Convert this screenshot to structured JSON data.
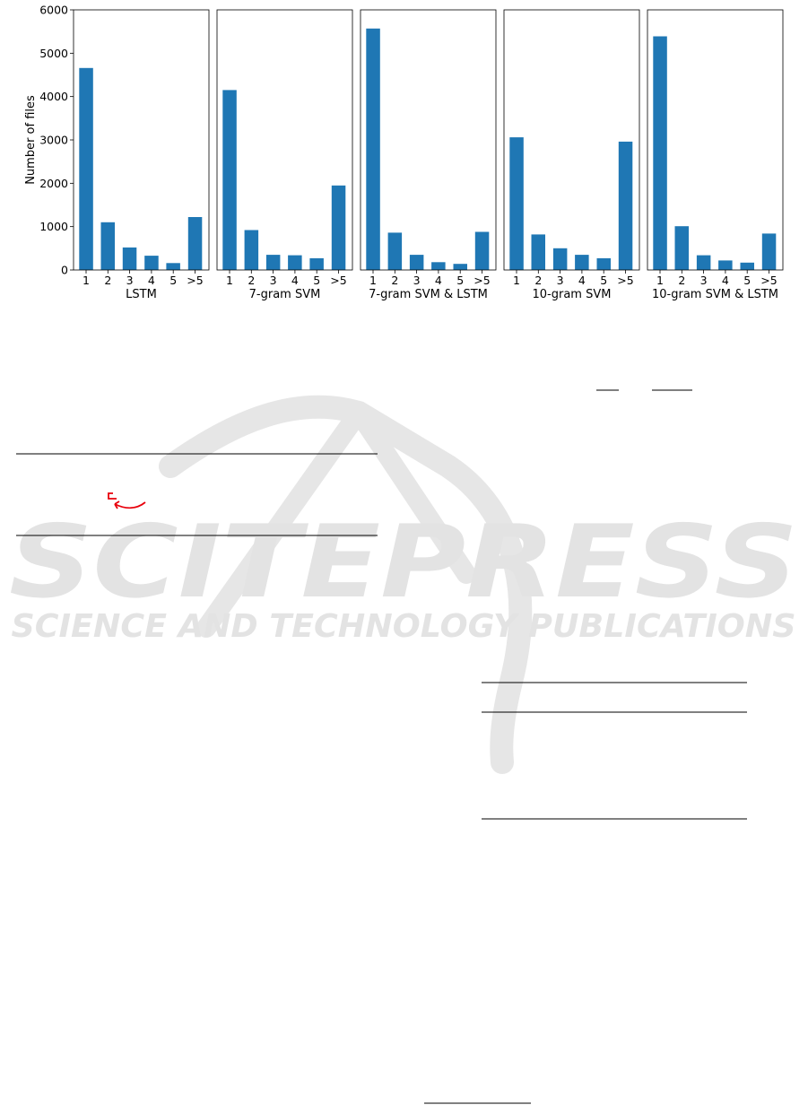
{
  "watermark": {
    "title": "SCITEPRESS",
    "subtitle": "SCIENCE AND TECHNOLOGY PUBLICATIONS",
    "color": "#e3e3e3"
  },
  "chart_data": {
    "type": "bar",
    "ylabel": "Number of files",
    "ylim": [
      0,
      6000
    ],
    "yticks": [
      0,
      1000,
      2000,
      3000,
      4000,
      5000,
      6000
    ],
    "categories": [
      "1",
      "2",
      "3",
      "4",
      "5",
      ">5"
    ],
    "bar_color": "#1f77b4",
    "grid": false,
    "panels": [
      {
        "xlabel": "LSTM",
        "values": [
          4660,
          1100,
          520,
          330,
          160,
          1220
        ]
      },
      {
        "xlabel": "7-gram SVM",
        "values": [
          4150,
          920,
          350,
          340,
          270,
          1950
        ]
      },
      {
        "xlabel": "7-gram SVM & LSTM",
        "values": [
          5570,
          860,
          350,
          180,
          140,
          880
        ]
      },
      {
        "xlabel": "10-gram SVM",
        "values": [
          3060,
          820,
          500,
          350,
          270,
          2960
        ]
      },
      {
        "xlabel": "10-gram SVM & LSTM",
        "values": [
          5390,
          1010,
          340,
          220,
          170,
          840
        ]
      }
    ]
  },
  "decor": {
    "accent_color": "#e8000b",
    "rule_color": "#000000"
  }
}
